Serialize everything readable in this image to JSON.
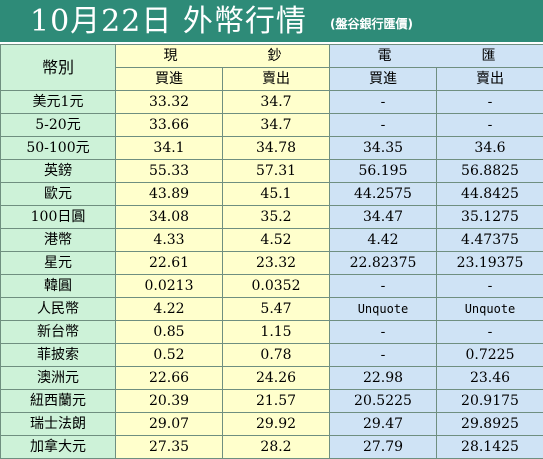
{
  "title": {
    "main": "10月22日 外幣行情",
    "sub": "(盤谷銀行匯價)"
  },
  "header": {
    "currency_label": "幣別",
    "cash_label_left": "現",
    "cash_label_right": "鈔",
    "tt_label_left": "電",
    "tt_label_right": "匯",
    "buy_label": "買進",
    "sell_label": "賣出"
  },
  "rows": [
    {
      "name": "美元1元",
      "cash_buy": "33.32",
      "cash_sell": "34.7",
      "tt_buy": "-",
      "tt_sell": "-"
    },
    {
      "name": "5-20元",
      "cash_buy": "33.66",
      "cash_sell": "34.7",
      "tt_buy": "-",
      "tt_sell": "-"
    },
    {
      "name": "50-100元",
      "cash_buy": "34.1",
      "cash_sell": "34.78",
      "tt_buy": "34.35",
      "tt_sell": "34.6"
    },
    {
      "name": "英鎊",
      "cash_buy": "55.33",
      "cash_sell": "57.31",
      "tt_buy": "56.195",
      "tt_sell": "56.8825"
    },
    {
      "name": "歐元",
      "cash_buy": "43.89",
      "cash_sell": "45.1",
      "tt_buy": "44.2575",
      "tt_sell": "44.8425"
    },
    {
      "name": "100日圓",
      "cash_buy": "34.08",
      "cash_sell": "35.2",
      "tt_buy": "34.47",
      "tt_sell": "35.1275"
    },
    {
      "name": "港幣",
      "cash_buy": "4.33",
      "cash_sell": "4.52",
      "tt_buy": "4.42",
      "tt_sell": "4.47375"
    },
    {
      "name": "星元",
      "cash_buy": "22.61",
      "cash_sell": "23.32",
      "tt_buy": "22.82375",
      "tt_sell": "23.19375"
    },
    {
      "name": "韓圓",
      "cash_buy": "0.0213",
      "cash_sell": "0.0352",
      "tt_buy": "-",
      "tt_sell": "-"
    },
    {
      "name": "人民幣",
      "cash_buy": "4.22",
      "cash_sell": "5.47",
      "tt_buy": "Unquote",
      "tt_sell": "Unquote"
    },
    {
      "name": "新台幣",
      "cash_buy": "0.85",
      "cash_sell": "1.15",
      "tt_buy": "-",
      "tt_sell": "-"
    },
    {
      "name": "菲披索",
      "cash_buy": "0.52",
      "cash_sell": "0.78",
      "tt_buy": "-",
      "tt_sell": "0.7225"
    },
    {
      "name": "澳洲元",
      "cash_buy": "22.66",
      "cash_sell": "24.26",
      "tt_buy": "22.98",
      "tt_sell": "23.46"
    },
    {
      "name": "紐西蘭元",
      "cash_buy": "20.39",
      "cash_sell": "21.57",
      "tt_buy": "20.5225",
      "tt_sell": "20.9175"
    },
    {
      "name": "瑞士法朗",
      "cash_buy": "29.07",
      "cash_sell": "29.92",
      "tt_buy": "29.47",
      "tt_sell": "29.8925"
    },
    {
      "name": "加拿大元",
      "cash_buy": "27.35",
      "cash_sell": "28.2",
      "tt_buy": "27.79",
      "tt_sell": "28.1425"
    }
  ],
  "colors": {
    "title_bg": "#2e8b78",
    "name_col_bg": "#cdf2d8",
    "cash_col_bg": "#ffffcc",
    "tt_col_bg": "#cfe3f5",
    "border": "#6f8f80"
  }
}
